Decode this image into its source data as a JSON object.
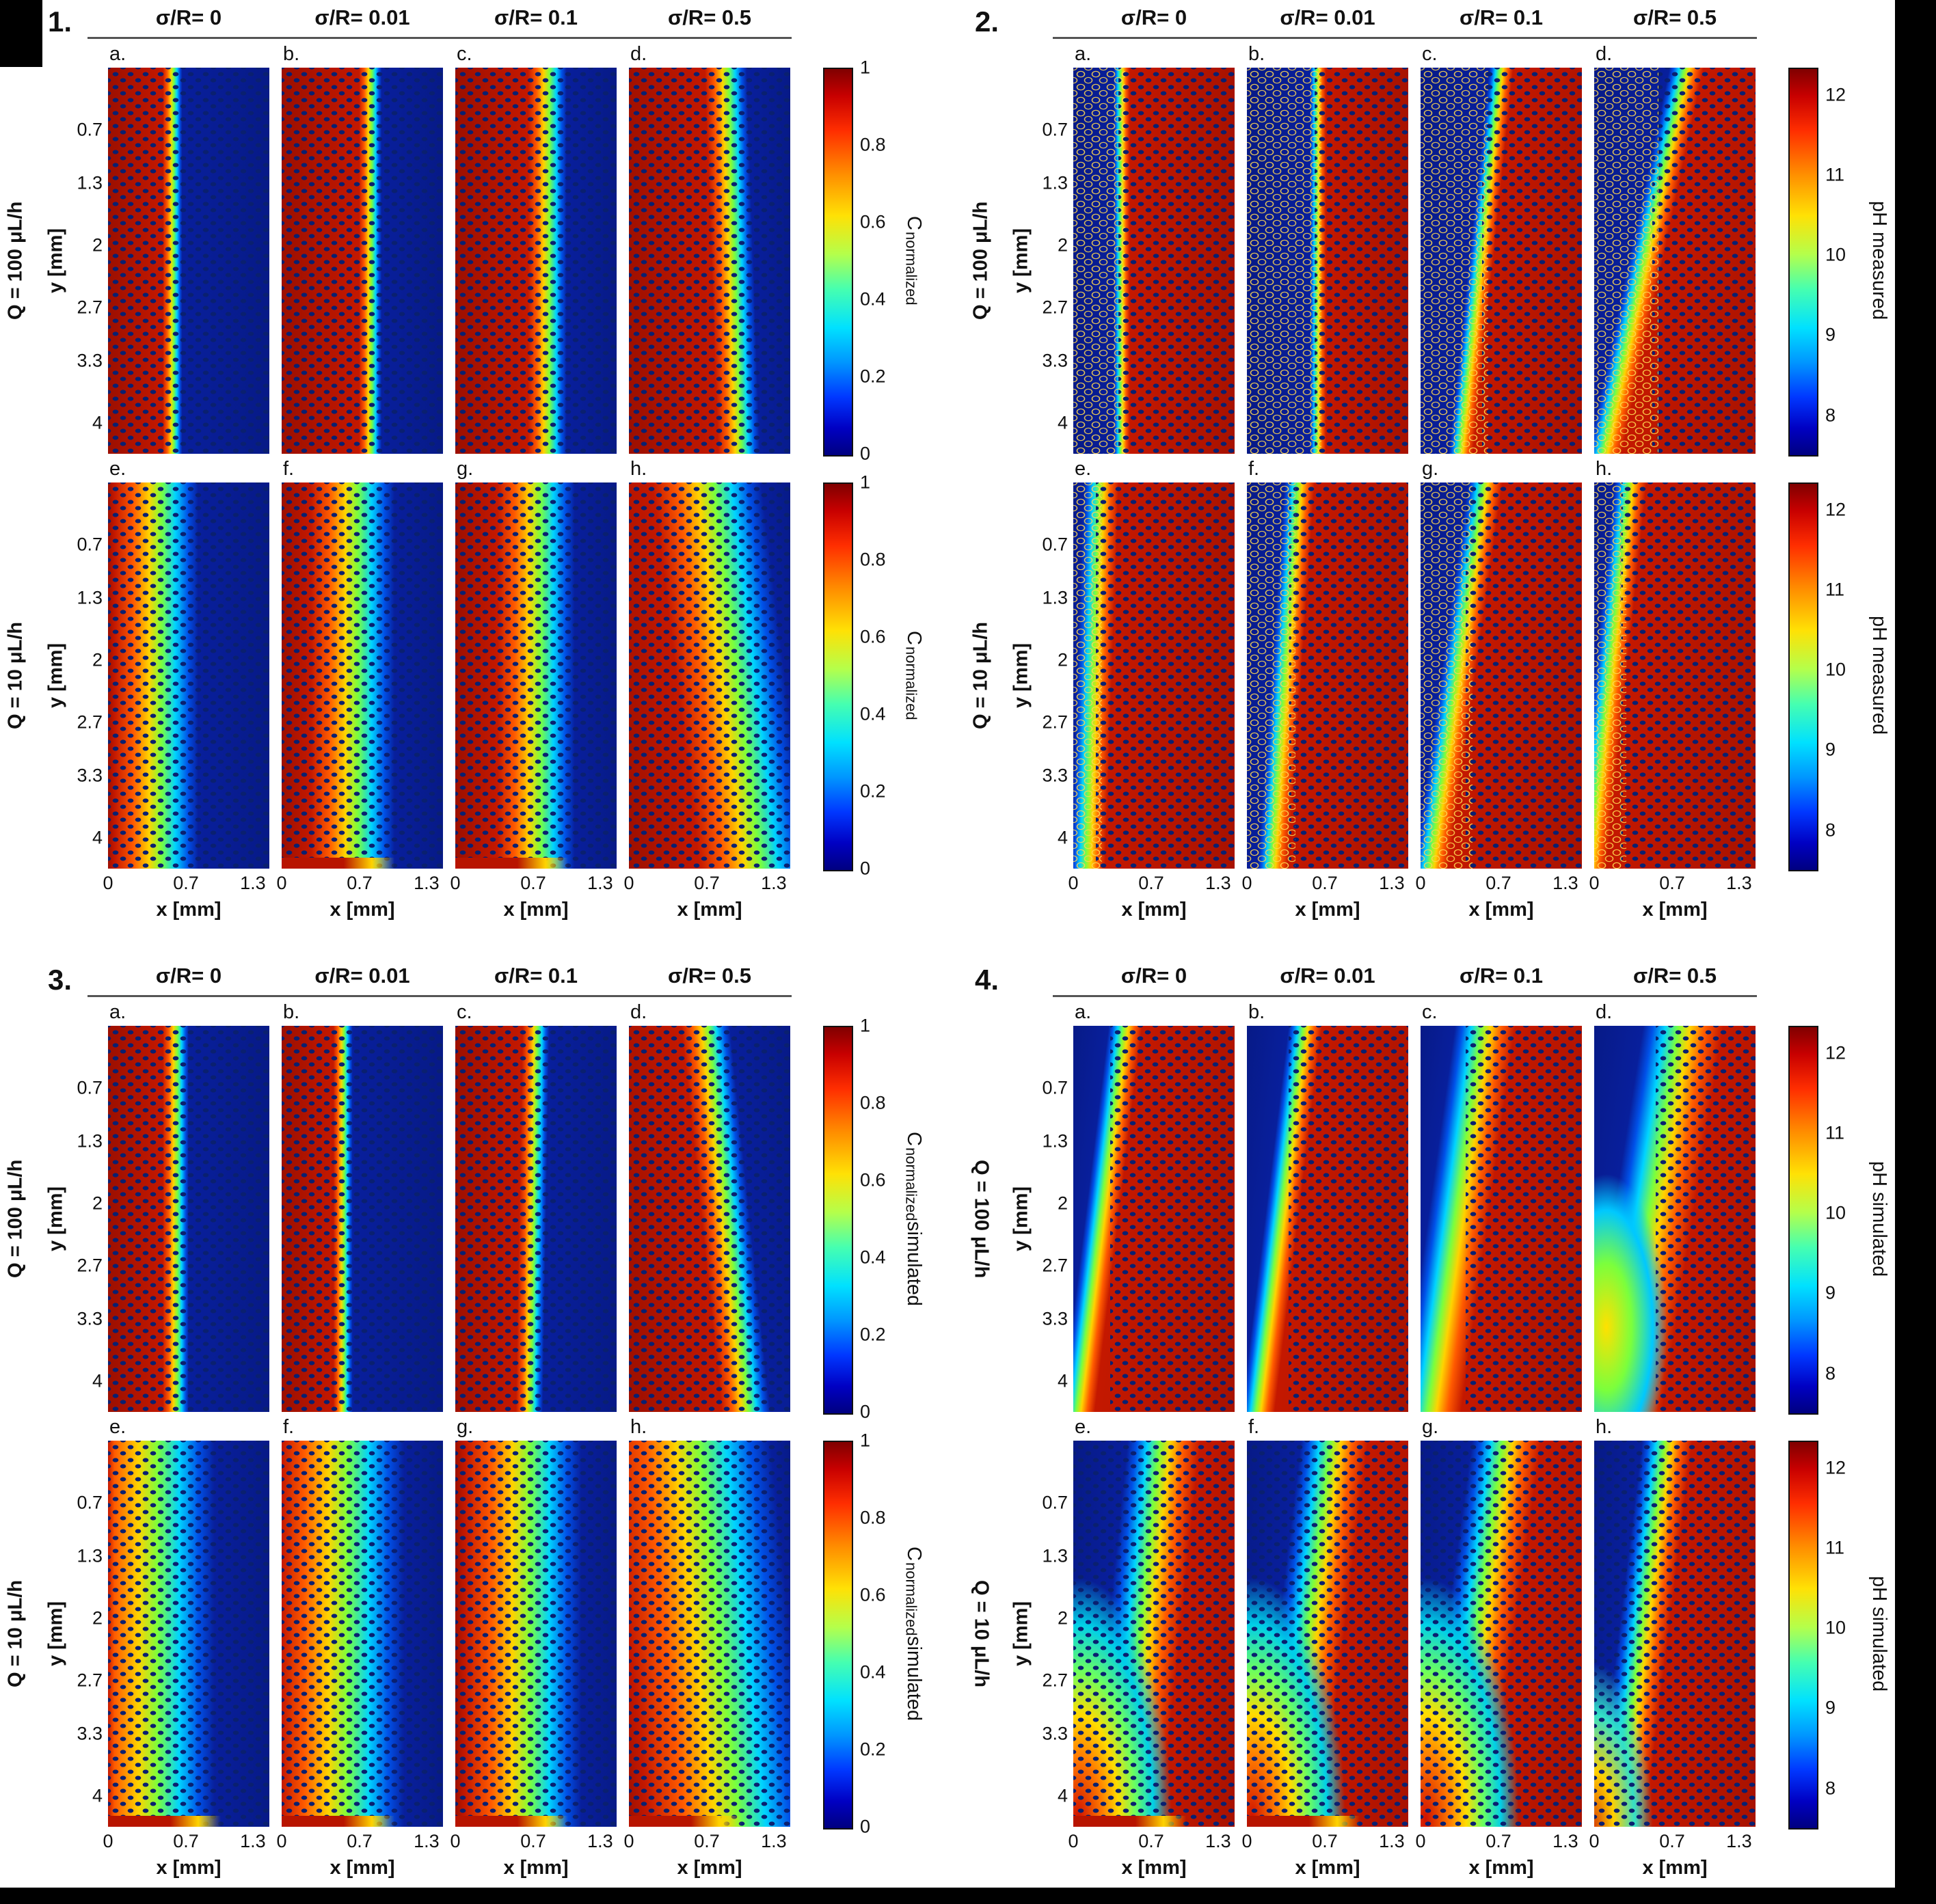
{
  "colors": {
    "background": "#ffffff",
    "frame": "#000000",
    "solute_red": "#b81400",
    "fluid_navy": "#071a87",
    "jet_colormap": [
      "#000080",
      "#0000c3",
      "#0037ff",
      "#0096ff",
      "#00e1ff",
      "#46ffb0",
      "#b4ff4b",
      "#ffe105",
      "#ff8c00",
      "#ff2e00",
      "#c80000",
      "#800000"
    ]
  },
  "figure": {
    "panels": [
      {
        "number": "1.",
        "column_headers": [
          "σ/R= 0",
          "σ/R= 0.01",
          "σ/R= 0.1",
          "σ/R= 0.5"
        ],
        "row_labels": [
          "Q = 100 μL/h",
          "Q = 10 μL/h"
        ],
        "subplot_letters": [
          [
            "a.",
            "b.",
            "c.",
            "d."
          ],
          [
            "e.",
            "f.",
            "g.",
            "h."
          ]
        ],
        "y_axis_label": "y [mm]",
        "x_axis_label": "x [mm]",
        "y_ticks": [
          "0.7",
          "1.3",
          "2",
          "2.7",
          "3.3",
          "4"
        ],
        "x_ticks": [
          "0",
          "0.7",
          "1.3"
        ],
        "colorbar": {
          "ticks": [
            "1",
            "0.8",
            "0.6",
            "0.4",
            "0.2",
            "0"
          ],
          "label_parts": [
            {
              "text": "C"
            },
            {
              "text": "normalized",
              "sub": true
            }
          ]
        }
      },
      {
        "number": "2.",
        "column_headers": [
          "σ/R= 0",
          "σ/R= 0.01",
          "σ/R= 0.1",
          "σ/R= 0.5"
        ],
        "row_labels": [
          "Q = 100 μL/h",
          "Q = 10 μL/h"
        ],
        "subplot_letters": [
          [
            "a.",
            "b.",
            "c.",
            "d."
          ],
          [
            "e.",
            "f.",
            "g.",
            "h."
          ]
        ],
        "y_axis_label": "y [mm]",
        "x_axis_label": "x [mm]",
        "y_ticks": [
          "0.7",
          "1.3",
          "2",
          "2.7",
          "3.3",
          "4"
        ],
        "x_ticks": [
          "0",
          "0.7",
          "1.3"
        ],
        "colorbar": {
          "ticks": [
            "12",
            "11",
            "10",
            "9",
            "8"
          ],
          "label_parts": [
            {
              "text": "pH measured"
            }
          ]
        }
      },
      {
        "number": "3.",
        "column_headers": [
          "σ/R= 0",
          "σ/R= 0.01",
          "σ/R= 0.1",
          "σ/R= 0.5"
        ],
        "row_labels": [
          "Q = 100 μL/h",
          "Q = 10 μL/h"
        ],
        "subplot_letters": [
          [
            "a.",
            "b.",
            "c.",
            "d."
          ],
          [
            "e.",
            "f.",
            "g.",
            "h."
          ]
        ],
        "y_axis_label": "y [mm]",
        "x_axis_label": "x [mm]",
        "y_ticks": [
          "0.7",
          "1.3",
          "2",
          "2.7",
          "3.3",
          "4"
        ],
        "x_ticks": [
          "0",
          "0.7",
          "1.3"
        ],
        "colorbar": {
          "ticks": [
            "1",
            "0.8",
            "0.6",
            "0.4",
            "0.2",
            "0"
          ],
          "label_parts": [
            {
              "text": "C"
            },
            {
              "text": "normalized",
              "sub": true
            },
            {
              "text": " simulated"
            }
          ]
        }
      },
      {
        "number": "4.",
        "column_headers": [
          "σ/R= 0",
          "σ/R= 0.01",
          "σ/R= 0.1",
          "σ/R= 0.5"
        ],
        "row_labels": [
          "Q = 100 μL/h",
          "Q = 10 μL/h"
        ],
        "subplot_letters": [
          [
            "a.",
            "b.",
            "c.",
            "d."
          ],
          [
            "e.",
            "f.",
            "g.",
            "h."
          ]
        ],
        "y_axis_label": "y [mm]",
        "x_axis_label": "x [mm]",
        "y_ticks": [
          "0.7",
          "1.3",
          "2",
          "2.7",
          "3.3",
          "4"
        ],
        "x_ticks": [
          "0",
          "0.7",
          "1.3"
        ],
        "colorbar": {
          "ticks": [
            "12",
            "11",
            "10",
            "9",
            "8"
          ],
          "label_parts": [
            {
              "text": "pH simulated"
            }
          ]
        }
      }
    ]
  },
  "chart_data": [
    {
      "type": "heatmap",
      "panel": 1,
      "quantity": "C normalized (measured)",
      "colormap": "jet",
      "value_range": [
        0,
        1
      ],
      "colorbar_ticks": [
        1,
        0.8,
        0.6,
        0.4,
        0.2,
        0
      ],
      "columns_sigma_over_R": [
        0,
        0.01,
        0.1,
        0.5
      ],
      "rows_Q_uL_per_h": [
        100,
        10
      ],
      "x_label": "x [mm]",
      "x_ticks": [
        0,
        0.7,
        1.3
      ],
      "x_range_mm": [
        0,
        1.45
      ],
      "y_label": "y [mm]",
      "y_ticks": [
        0.7,
        1.3,
        2,
        2.7,
        3.3,
        4
      ],
      "y_range_mm": [
        0,
        4.35
      ],
      "orientation": "solute-left",
      "subplots": [
        {
          "letter": "a",
          "Q_uL_per_h": 100,
          "sigma_over_R": 0,
          "front_x_mm": 0.58,
          "edge_pct": 40,
          "spread_pct": 6,
          "angle_deg": 90
        },
        {
          "letter": "b",
          "Q_uL_per_h": 100,
          "sigma_over_R": 0.01,
          "front_x_mm": 0.8,
          "edge_pct": 55,
          "spread_pct": 7,
          "angle_deg": 90
        },
        {
          "letter": "c",
          "Q_uL_per_h": 100,
          "sigma_over_R": 0.1,
          "front_x_mm": 0.83,
          "edge_pct": 57,
          "spread_pct": 12,
          "angle_deg": 90
        },
        {
          "letter": "d",
          "Q_uL_per_h": 100,
          "sigma_over_R": 0.5,
          "front_x_mm": 0.91,
          "edge_pct": 63,
          "spread_pct": 12,
          "angle_deg": 88
        },
        {
          "letter": "e",
          "Q_uL_per_h": 10,
          "sigma_over_R": 0,
          "front_x_mm": 0.44,
          "edge_pct": 30,
          "spread_pct": 26,
          "angle_deg": 90
        },
        {
          "letter": "f",
          "Q_uL_per_h": 10,
          "sigma_over_R": 0.01,
          "front_x_mm": 0.64,
          "edge_pct": 44,
          "spread_pct": 26,
          "angle_deg": 90,
          "strip": true
        },
        {
          "letter": "g",
          "Q_uL_per_h": 10,
          "sigma_over_R": 0.1,
          "front_x_mm": 0.73,
          "edge_pct": 50,
          "spread_pct": 24,
          "angle_deg": 90,
          "strip": true
        },
        {
          "letter": "h",
          "Q_uL_per_h": 10,
          "sigma_over_R": 0.5,
          "front_x_mm": 0.87,
          "edge_pct": 60,
          "spread_pct": 26,
          "angle_deg": 83
        }
      ]
    },
    {
      "type": "heatmap",
      "panel": 2,
      "quantity": "pH measured",
      "colormap": "jet",
      "value_range": [
        7.5,
        12.5
      ],
      "colorbar_ticks": [
        12,
        11,
        10,
        9,
        8
      ],
      "columns_sigma_over_R": [
        0,
        0.01,
        0.1,
        0.5
      ],
      "rows_Q_uL_per_h": [
        100,
        10
      ],
      "x_label": "x [mm]",
      "x_ticks": [
        0,
        0.7,
        1.3
      ],
      "x_range_mm": [
        0,
        1.45
      ],
      "y_label": "y [mm]",
      "y_ticks": [
        0.7,
        1.3,
        2,
        2.7,
        3.3,
        4
      ],
      "y_range_mm": [
        0,
        4.35
      ],
      "orientation": "solute-right",
      "subplots": [
        {
          "letter": "a",
          "Q_uL_per_h": 100,
          "sigma_over_R": 0,
          "front_x_mm": 0.44,
          "edge_pct": 30,
          "spread_pct": 5,
          "angle_deg": 90
        },
        {
          "letter": "b",
          "Q_uL_per_h": 100,
          "sigma_over_R": 0.01,
          "front_x_mm": 0.64,
          "edge_pct": 44,
          "spread_pct": 5,
          "angle_deg": 90
        },
        {
          "letter": "c",
          "Q_uL_per_h": 100,
          "sigma_over_R": 0.1,
          "front_x_mm": 0.58,
          "edge_pct": 40,
          "spread_pct": 6,
          "angle_deg": 96
        },
        {
          "letter": "d",
          "Q_uL_per_h": 100,
          "sigma_over_R": 0.5,
          "front_x_mm": 0.55,
          "edge_pct": 38,
          "spread_pct": 7,
          "angle_deg": 102
        },
        {
          "letter": "e",
          "Q_uL_per_h": 10,
          "sigma_over_R": 0,
          "front_x_mm": 0.23,
          "edge_pct": 16,
          "spread_pct": 10,
          "angle_deg": 92
        },
        {
          "letter": "f",
          "Q_uL_per_h": 10,
          "sigma_over_R": 0.01,
          "front_x_mm": 0.41,
          "edge_pct": 28,
          "spread_pct": 8,
          "angle_deg": 94
        },
        {
          "letter": "g",
          "Q_uL_per_h": 10,
          "sigma_over_R": 0.1,
          "front_x_mm": 0.44,
          "edge_pct": 30,
          "spread_pct": 8,
          "angle_deg": 98
        },
        {
          "letter": "h",
          "Q_uL_per_h": 10,
          "sigma_over_R": 0.5,
          "front_x_mm": 0.26,
          "edge_pct": 18,
          "spread_pct": 8,
          "angle_deg": 96
        }
      ]
    },
    {
      "type": "heatmap",
      "panel": 3,
      "quantity": "C normalized simulated",
      "colormap": "jet",
      "value_range": [
        0,
        1
      ],
      "colorbar_ticks": [
        1,
        0.8,
        0.6,
        0.4,
        0.2,
        0
      ],
      "columns_sigma_over_R": [
        0,
        0.01,
        0.1,
        0.5
      ],
      "rows_Q_uL_per_h": [
        100,
        10
      ],
      "x_label": "x [mm]",
      "x_ticks": [
        0,
        0.7,
        1.3
      ],
      "x_range_mm": [
        0,
        1.45
      ],
      "y_label": "y [mm]",
      "y_ticks": [
        0.7,
        1.3,
        2,
        2.7,
        3.3,
        4
      ],
      "y_range_mm": [
        0,
        4.35
      ],
      "orientation": "solute-left",
      "subplots": [
        {
          "letter": "a",
          "Q_uL_per_h": 100,
          "sigma_over_R": 0,
          "front_x_mm": 0.61,
          "edge_pct": 42,
          "spread_pct": 8,
          "angle_deg": 90
        },
        {
          "letter": "b",
          "Q_uL_per_h": 100,
          "sigma_over_R": 0.01,
          "front_x_mm": 0.55,
          "edge_pct": 38,
          "spread_pct": 6,
          "angle_deg": 90
        },
        {
          "letter": "c",
          "Q_uL_per_h": 100,
          "sigma_over_R": 0.1,
          "front_x_mm": 0.7,
          "edge_pct": 48,
          "spread_pct": 8,
          "angle_deg": 91
        },
        {
          "letter": "d",
          "Q_uL_per_h": 100,
          "sigma_over_R": 0.5,
          "front_x_mm": 0.84,
          "edge_pct": 58,
          "spread_pct": 12,
          "angle_deg": 84
        },
        {
          "letter": "e",
          "Q_uL_per_h": 10,
          "sigma_over_R": 0,
          "front_x_mm": 0.38,
          "edge_pct": 26,
          "spread_pct": 40,
          "angle_deg": 90,
          "strip": true
        },
        {
          "letter": "f",
          "Q_uL_per_h": 10,
          "sigma_over_R": 0.01,
          "front_x_mm": 0.52,
          "edge_pct": 36,
          "spread_pct": 40,
          "angle_deg": 90,
          "strip": true
        },
        {
          "letter": "g",
          "Q_uL_per_h": 10,
          "sigma_over_R": 0.1,
          "front_x_mm": 0.61,
          "edge_pct": 42,
          "spread_pct": 36,
          "angle_deg": 90,
          "strip": true
        },
        {
          "letter": "h",
          "Q_uL_per_h": 10,
          "sigma_over_R": 0.5,
          "front_x_mm": 0.73,
          "edge_pct": 50,
          "spread_pct": 40,
          "angle_deg": 84,
          "strip": true
        }
      ]
    },
    {
      "type": "heatmap",
      "panel": 4,
      "quantity": "pH simulated",
      "colormap": "jet",
      "value_range": [
        7.5,
        12.5
      ],
      "colorbar_ticks": [
        12,
        11,
        10,
        9,
        8
      ],
      "columns_sigma_over_R": [
        0,
        0.01,
        0.1,
        0.5
      ],
      "rows_Q_uL_per_h": [
        100,
        10
      ],
      "x_label": "x [mm]",
      "x_ticks": [
        0,
        0.7,
        1.3
      ],
      "x_range_mm": [
        0,
        1.45
      ],
      "y_label": "y [mm]",
      "y_ticks": [
        0.7,
        1.3,
        2,
        2.7,
        3.3,
        4
      ],
      "y_range_mm": [
        0,
        4.35
      ],
      "orientation": "solute-right",
      "subplots": [
        {
          "letter": "a",
          "Q_uL_per_h": 100,
          "sigma_over_R": 0,
          "front_x_mm": 0.36,
          "edge_pct": 25,
          "spread_pct": 8,
          "angle_deg": 97
        },
        {
          "letter": "b",
          "Q_uL_per_h": 100,
          "sigma_over_R": 0.01,
          "front_x_mm": 0.41,
          "edge_pct": 28,
          "spread_pct": 8,
          "angle_deg": 97
        },
        {
          "letter": "c",
          "Q_uL_per_h": 100,
          "sigma_over_R": 0.1,
          "front_x_mm": 0.44,
          "edge_pct": 30,
          "spread_pct": 14,
          "angle_deg": 98
        },
        {
          "letter": "d",
          "Q_uL_per_h": 100,
          "sigma_over_R": 0.5,
          "front_x_mm": 0.58,
          "edge_pct": 40,
          "spread_pct": 18,
          "angle_deg": 99,
          "blob": 3
        },
        {
          "letter": "e",
          "Q_uL_per_h": 10,
          "sigma_over_R": 0,
          "front_x_mm": 0.65,
          "edge_pct": 45,
          "spread_pct": 18,
          "angle_deg": 96,
          "blob": 1,
          "strip": true
        },
        {
          "letter": "f",
          "Q_uL_per_h": 10,
          "sigma_over_R": 0.01,
          "front_x_mm": 0.61,
          "edge_pct": 42,
          "spread_pct": 16,
          "angle_deg": 97,
          "blob": 1,
          "strip": true
        },
        {
          "letter": "g",
          "Q_uL_per_h": 10,
          "sigma_over_R": 0.1,
          "front_x_mm": 0.58,
          "edge_pct": 40,
          "spread_pct": 16,
          "angle_deg": 98,
          "blob": 1
        },
        {
          "letter": "h",
          "Q_uL_per_h": 10,
          "sigma_over_R": 0.5,
          "front_x_mm": 0.51,
          "edge_pct": 35,
          "spread_pct": 12,
          "angle_deg": 97,
          "blob": 2
        }
      ]
    }
  ]
}
